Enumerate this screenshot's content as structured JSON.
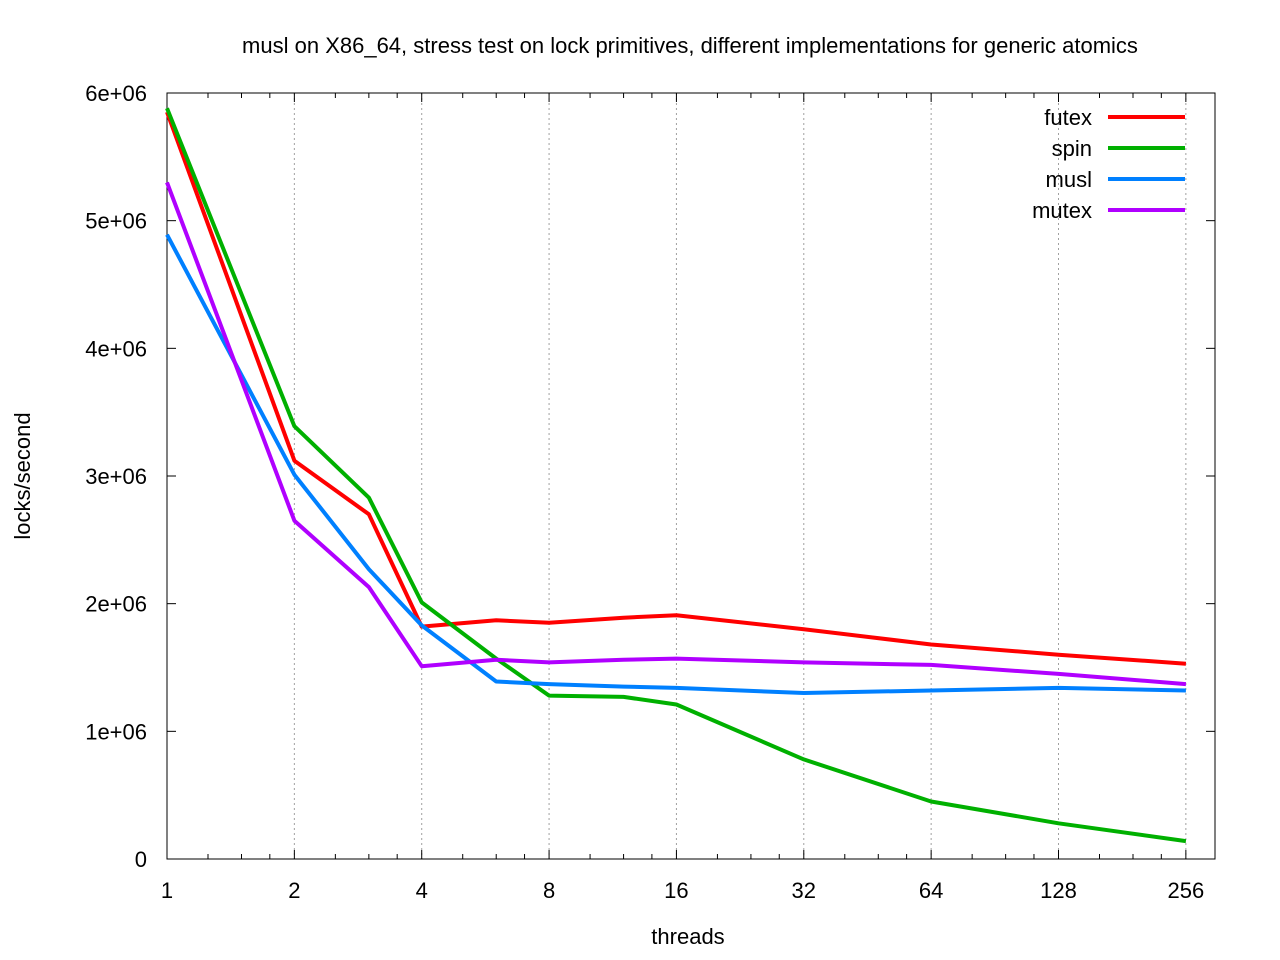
{
  "chart_data": {
    "type": "line",
    "title": "musl on X86_64, stress test on lock primitives, different implementations for generic atomics",
    "xlabel": "threads",
    "ylabel": "locks/second",
    "x_scale": "log2",
    "xlim": [
      1,
      300
    ],
    "ylim": [
      0,
      6000000
    ],
    "x_ticks": [
      1,
      2,
      4,
      8,
      16,
      32,
      64,
      128,
      256
    ],
    "x_tick_labels": [
      "1",
      "2",
      "4",
      "8",
      "16",
      "32",
      "64",
      "128",
      "256"
    ],
    "y_ticks": [
      0,
      1000000,
      2000000,
      3000000,
      4000000,
      5000000,
      6000000
    ],
    "y_tick_labels": [
      "0",
      "1e+06",
      "2e+06",
      "3e+06",
      "4e+06",
      "5e+06",
      "6e+06"
    ],
    "grid": "vertical dotted at major x ticks",
    "legend_position": "top-right",
    "x": [
      1,
      2,
      3,
      4,
      6,
      8,
      12,
      16,
      32,
      64,
      128,
      256
    ],
    "series": [
      {
        "name": "futex",
        "color": "#ff0000",
        "values": [
          5850000,
          3120000,
          2700000,
          1820000,
          1870000,
          1850000,
          1890000,
          1910000,
          1800000,
          1680000,
          1600000,
          1530000
        ]
      },
      {
        "name": "spin",
        "color": "#00b000",
        "values": [
          5880000,
          3390000,
          2830000,
          2010000,
          1570000,
          1280000,
          1270000,
          1210000,
          780000,
          450000,
          280000,
          140000
        ]
      },
      {
        "name": "musl",
        "color": "#0080ff",
        "values": [
          4890000,
          3010000,
          2270000,
          1830000,
          1390000,
          1370000,
          1350000,
          1340000,
          1300000,
          1320000,
          1340000,
          1320000
        ]
      },
      {
        "name": "mutex",
        "color": "#b000ff",
        "values": [
          5300000,
          2650000,
          2130000,
          1510000,
          1560000,
          1540000,
          1560000,
          1570000,
          1540000,
          1520000,
          1450000,
          1370000
        ]
      }
    ]
  }
}
